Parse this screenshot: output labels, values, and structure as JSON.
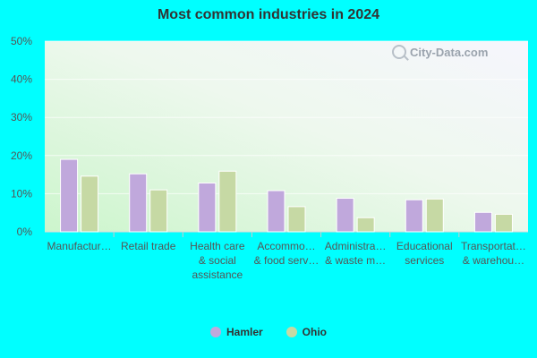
{
  "chart_data": {
    "type": "bar",
    "title": "Most common industries in 2024",
    "categories": [
      [
        "Manufactur…"
      ],
      [
        "Retail trade"
      ],
      [
        "Health care",
        "& social",
        "assistance"
      ],
      [
        "Accommo…",
        "& food serv…"
      ],
      [
        "Administra…",
        "& waste m…"
      ],
      [
        "Educational",
        "services"
      ],
      [
        "Transportat…",
        "& warehou…"
      ]
    ],
    "series": [
      {
        "name": "Hamler",
        "color": "#c0a8dc",
        "values": [
          19.0,
          15.2,
          12.8,
          10.8,
          8.8,
          8.4,
          5.1
        ]
      },
      {
        "name": "Ohio",
        "color": "#c6d9a4",
        "values": [
          14.6,
          11.0,
          15.9,
          6.6,
          3.7,
          8.6,
          4.6
        ]
      }
    ],
    "ylim": [
      0,
      50
    ],
    "yticks": [
      0,
      10,
      20,
      30,
      40,
      50
    ],
    "ytick_labels": [
      "0%",
      "10%",
      "20%",
      "30%",
      "40%",
      "50%"
    ],
    "grid": true,
    "legend_position": "bottom-center"
  },
  "watermark": "City-Data.com"
}
